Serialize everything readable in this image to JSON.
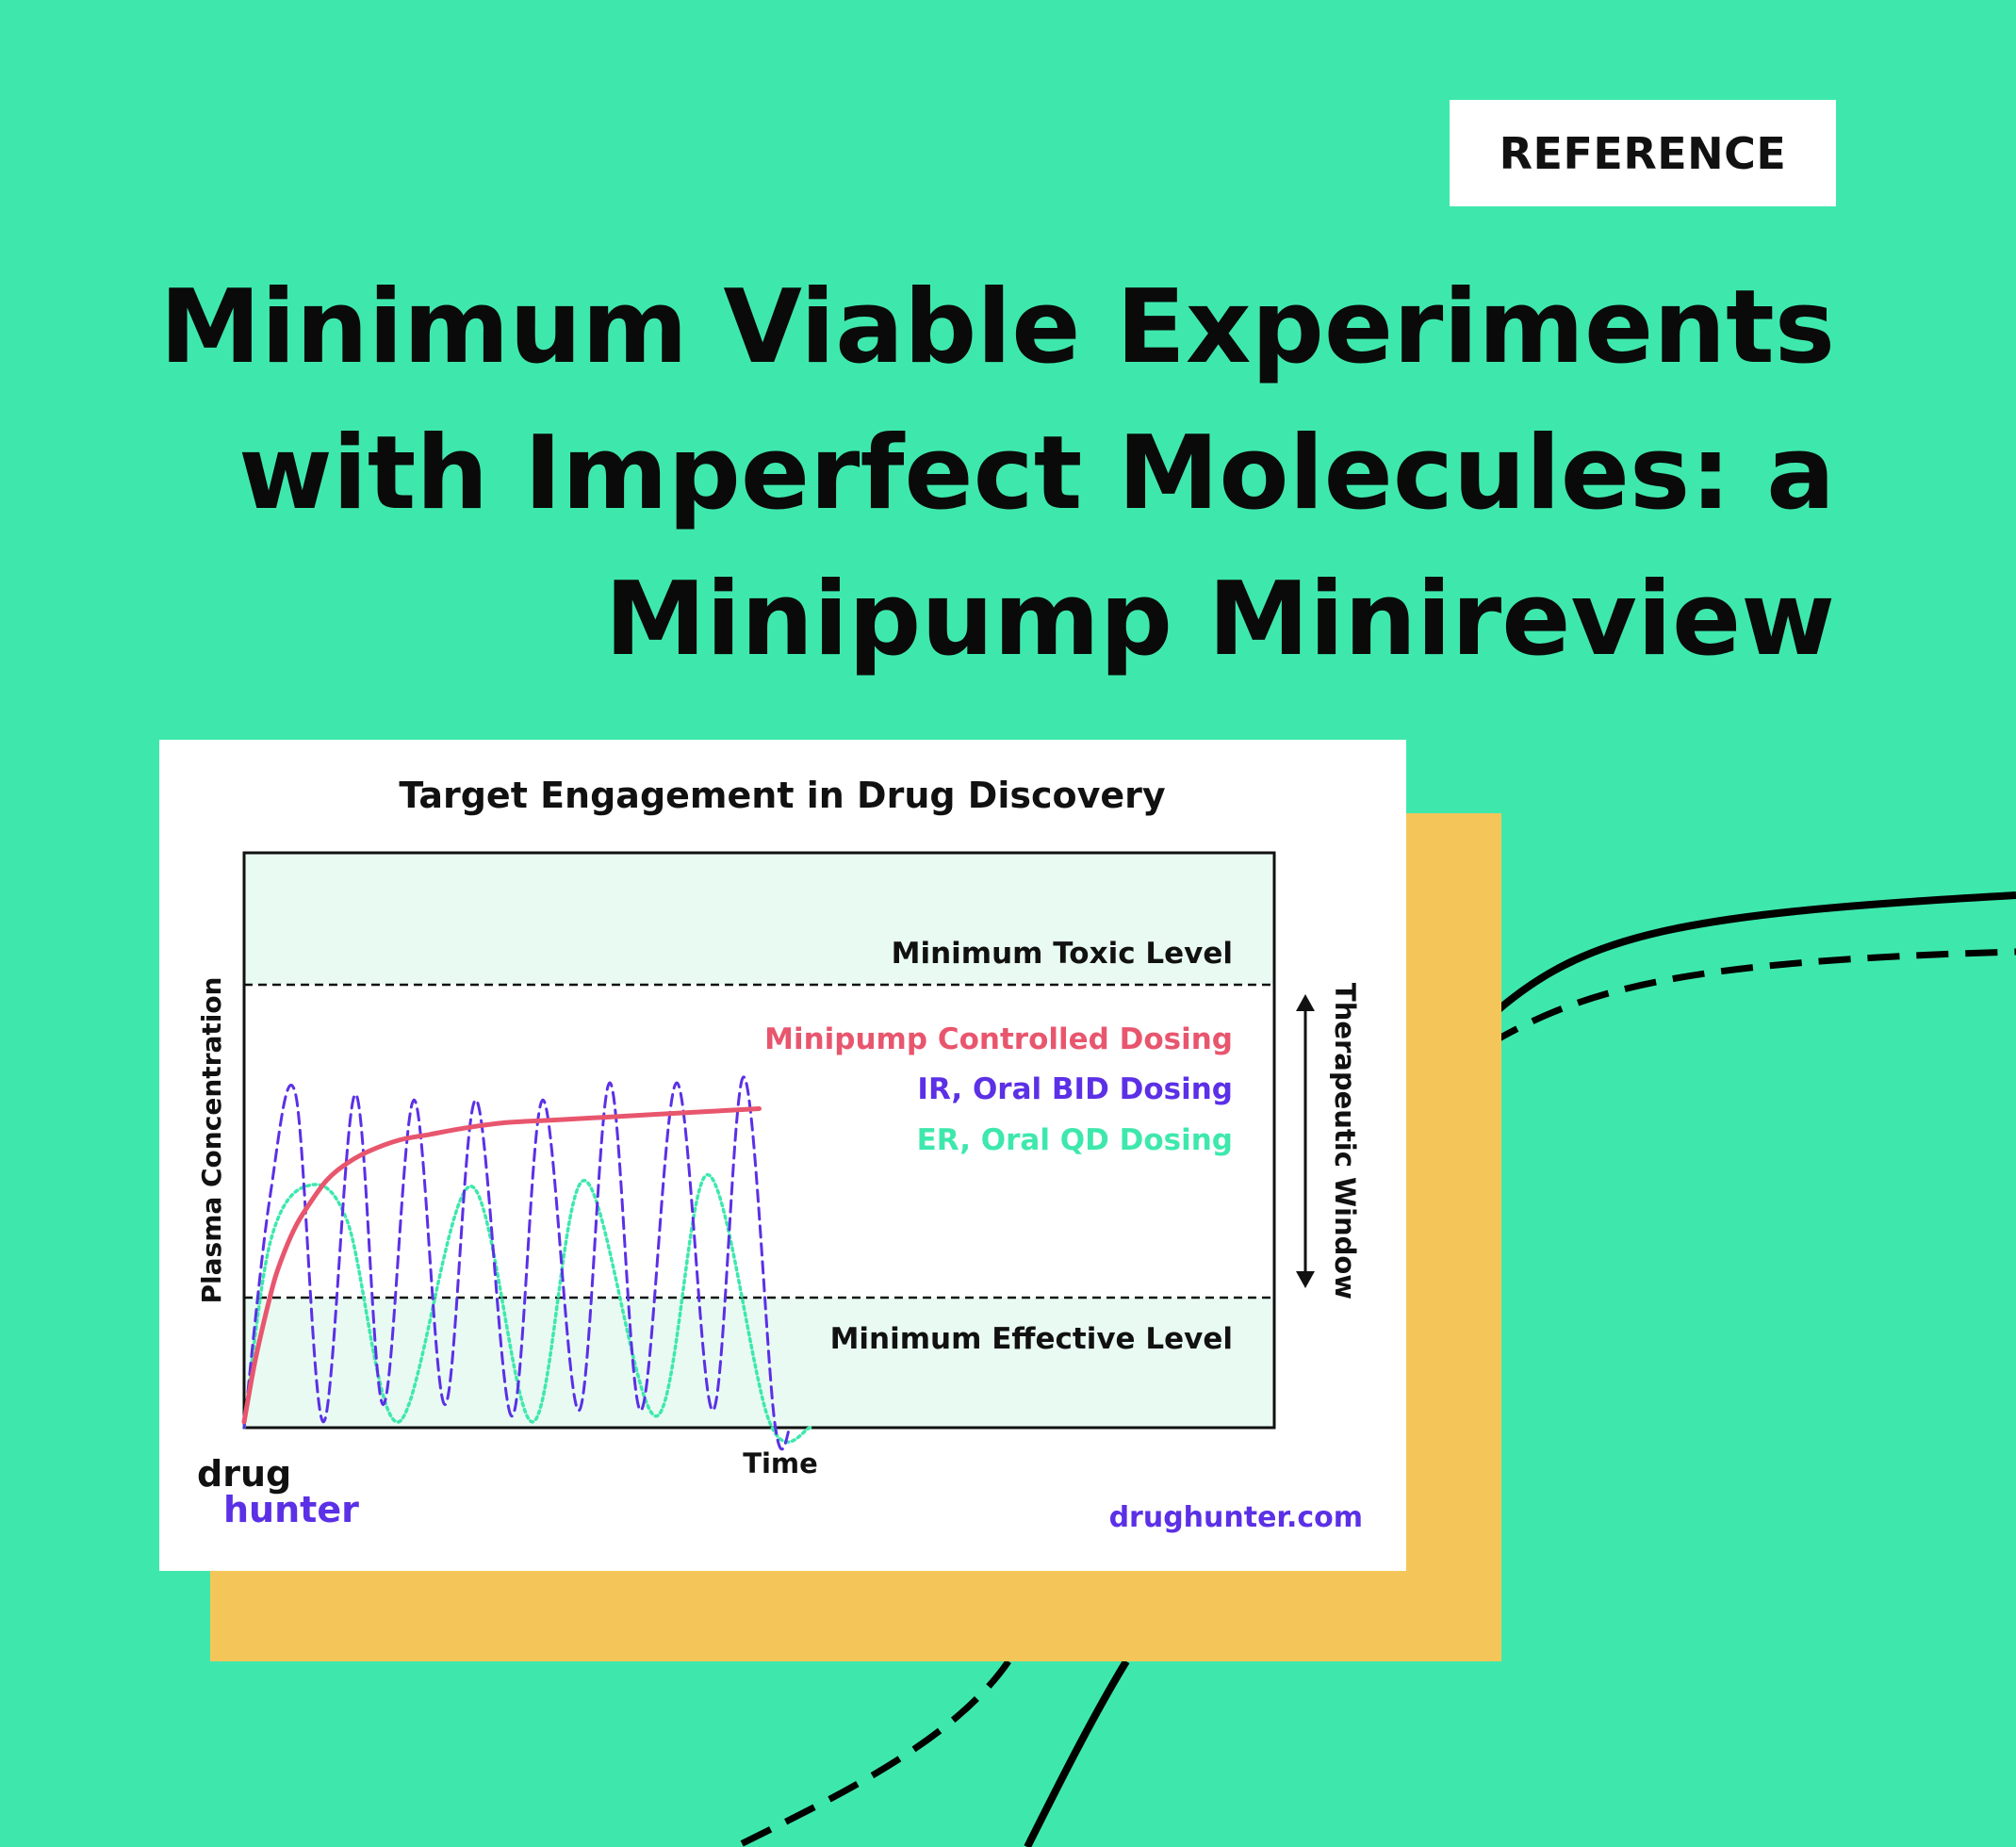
{
  "badge": {
    "label": "REFERENCE"
  },
  "title": {
    "lines": [
      "Minimum Viable Experiments",
      "with Imperfect Molecules: a",
      "Minipump Minireview"
    ]
  },
  "colors": {
    "background": "#3ee8ad",
    "card_back": "#f4c65a",
    "minipump": "#e8566e",
    "ir_bid": "#5b30e6",
    "er_qd": "#3ee8ad",
    "band_fill": "#e9faf3"
  },
  "chart_data": {
    "type": "line",
    "title": "Target Engagement in Drug Discovery",
    "xlabel": "Time",
    "ylabel": "Plasma Concentration",
    "xlim": [
      0,
      100
    ],
    "ylim": [
      0,
      100
    ],
    "grid": false,
    "legend_position": "top-right",
    "reference_lines": [
      {
        "label": "Minimum Toxic Level",
        "y": 77
      },
      {
        "label": "Minimum Effective Level",
        "y": 23
      }
    ],
    "range_annotation": {
      "label": "Therapeutic Window",
      "from": 23,
      "to": 77
    },
    "series": [
      {
        "name": "Minipump Controlled Dosing",
        "color": "#e8566e",
        "style": "solid",
        "x": [
          0,
          1,
          2,
          3,
          4,
          5,
          6,
          8,
          10,
          12,
          15,
          18,
          21,
          25,
          30,
          35,
          40,
          45,
          50
        ],
        "y": [
          1,
          11,
          19,
          26,
          31,
          35,
          38,
          43,
          46,
          48,
          50,
          51,
          52,
          53,
          53.5,
          54,
          54.5,
          55,
          55.5
        ]
      },
      {
        "name": "IR, Oral BID Dosing",
        "color": "#5b30e6",
        "style": "dashed",
        "x": [
          0,
          2.5,
          5,
          7.7,
          10.8,
          13.5,
          16.5,
          19.5,
          22.5,
          26,
          29,
          32.5,
          35.5,
          38.5,
          42,
          45.5,
          48.5,
          51.5,
          53
        ],
        "y": [
          0,
          40,
          58,
          1,
          58,
          4,
          57,
          4,
          57,
          2,
          57,
          3,
          60,
          3,
          60,
          3,
          61,
          1,
          0
        ]
      },
      {
        "name": "ER, Oral QD Dosing",
        "color": "#3ee8ad",
        "style": "dotted",
        "x": [
          0,
          2.5,
          6,
          10,
          15,
          22,
          28,
          33,
          40,
          45,
          51,
          55
        ],
        "y": [
          0,
          32,
          42,
          36,
          1,
          42,
          1,
          43,
          2,
          44,
          1,
          0
        ]
      }
    ]
  },
  "footer": {
    "logo_line1": "drug",
    "logo_line2": "hunter",
    "site": "drughunter.com"
  }
}
